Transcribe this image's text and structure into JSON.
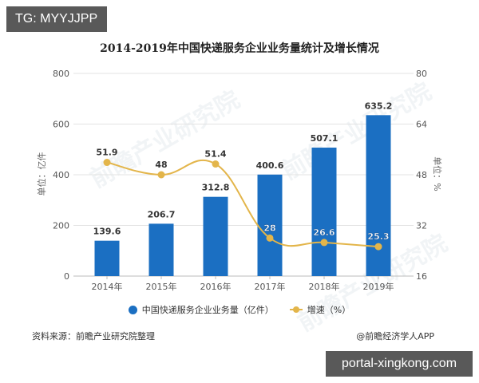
{
  "tag_badge": "TG: MYYJJPP",
  "url_badge": "portal-xingkong.com",
  "watermark": "前瞻产业研究院",
  "chart_data": {
    "type": "bar+line",
    "title": "2014-2019年中国快递服务企业业务量统计及增长情况",
    "categories": [
      "2014年",
      "2015年",
      "2016年",
      "2017年",
      "2018年",
      "2019年"
    ],
    "series": [
      {
        "name": "中国快递服务企业业务量（亿件）",
        "type": "bar",
        "axis": "left",
        "color": "#1b6fc2",
        "values": [
          139.6,
          206.7,
          312.8,
          400.6,
          507.1,
          635.2
        ],
        "labels": [
          "139.6",
          "206.7",
          "312.8",
          "400.6",
          "507.1",
          "635.2"
        ]
      },
      {
        "name": "增速（%）",
        "type": "line",
        "axis": "right",
        "color": "#e3b54a",
        "values": [
          51.9,
          48,
          51.4,
          28,
          26.6,
          25.3
        ],
        "labels": [
          "51.9",
          "48",
          "51.4",
          "28",
          "26.6",
          "25.3"
        ]
      }
    ],
    "ylabel": "单位：亿件",
    "ylabel_right": "单位：%",
    "ylim": [
      0,
      800
    ],
    "ylim_right": [
      16,
      80
    ],
    "yticks": [
      "800",
      "600",
      "400",
      "200",
      "0"
    ],
    "yticks_right": [
      "80",
      "64",
      "48",
      "32",
      "16"
    ],
    "grid": true,
    "legend_position": "bottom"
  },
  "legend": {
    "bar_label": "中国快递服务企业业务量（亿件）",
    "line_label": "增速（%）"
  },
  "footer": {
    "source": "资料来源：前瞻产业研究院整理",
    "credit": "@前瞻经济学人APP"
  },
  "colors": {
    "bar": "#1b6fc2",
    "line": "#e3b54a",
    "grid": "#e3e3e3",
    "badge_bg": "#595959"
  }
}
